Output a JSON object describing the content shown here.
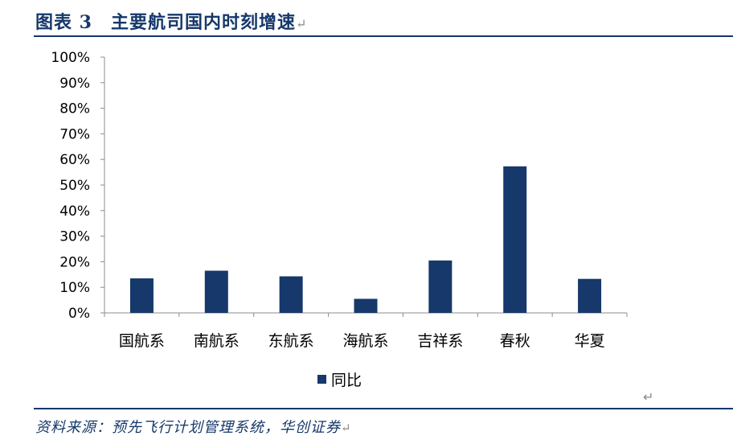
{
  "figure": {
    "title": "图表 3　主要航司国内时刻增速",
    "return_mark": "↵",
    "source": "资料来源：预先飞行计划管理系统，华创证券"
  },
  "chart_data": {
    "type": "bar",
    "categories": [
      "国航系",
      "南航系",
      "东航系",
      "海航系",
      "吉祥系",
      "春秋",
      "华夏"
    ],
    "series": [
      {
        "name": "同比",
        "values": [
          0.135,
          0.165,
          0.143,
          0.055,
          0.205,
          0.573,
          0.133
        ]
      }
    ],
    "yticks": [
      "0%",
      "10%",
      "20%",
      "30%",
      "40%",
      "50%",
      "60%",
      "70%",
      "80%",
      "90%",
      "100%"
    ],
    "ylim": [
      0,
      1
    ],
    "legend_position": "bottom",
    "grid": false,
    "bar_color": "#16386b"
  }
}
